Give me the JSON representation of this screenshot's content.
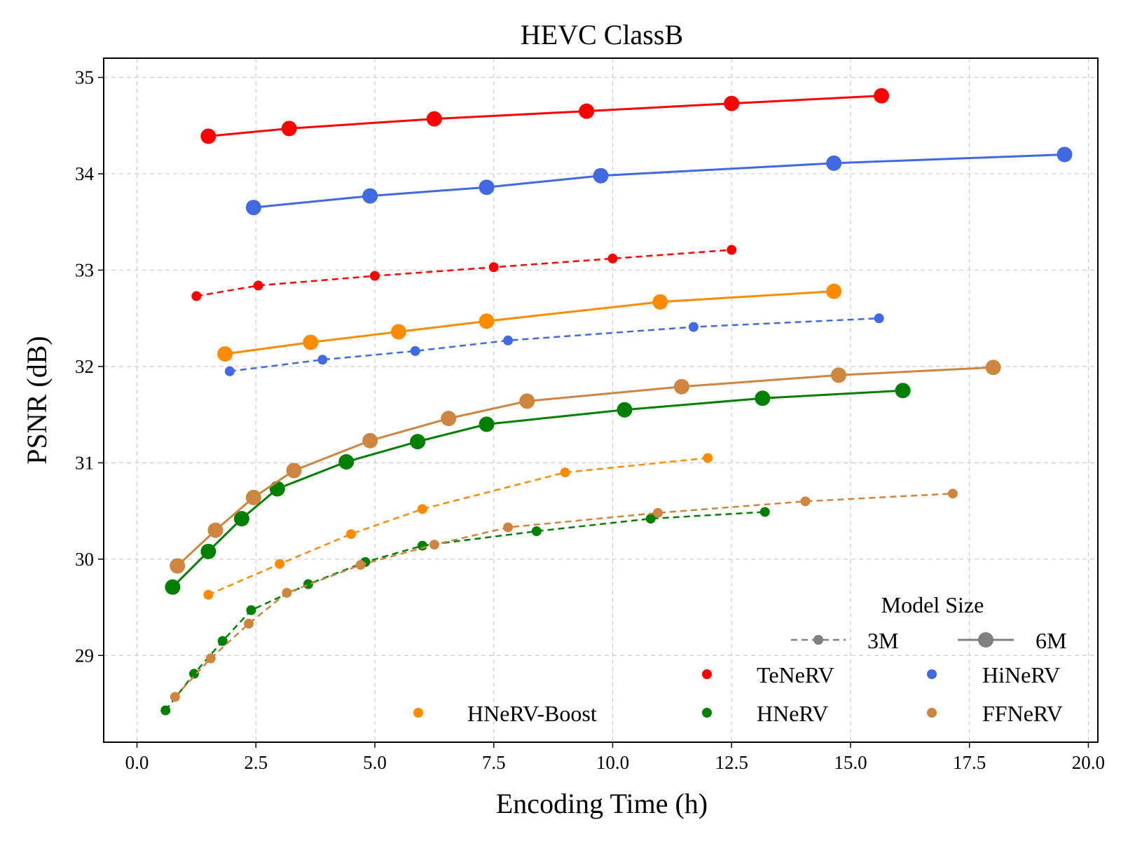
{
  "chart_data": {
    "type": "line",
    "title": "HEVC ClassB",
    "xlabel": "Encoding Time (h)",
    "ylabel": "PSNR (dB)",
    "xlim": [
      -0.7,
      20.2
    ],
    "ylim": [
      28.1,
      35.2
    ],
    "xticks": [
      0,
      2.5,
      5,
      7.5,
      10,
      12.5,
      15,
      17.5,
      20
    ],
    "xtick_labels": [
      "0.0",
      "2.5",
      "5.0",
      "7.5",
      "10.0",
      "12.5",
      "15.0",
      "17.5",
      "20.0"
    ],
    "yticks": [
      29,
      30,
      31,
      32,
      33,
      34,
      35
    ],
    "ytick_labels": [
      "29",
      "30",
      "31",
      "32",
      "33",
      "34",
      "35"
    ],
    "grid": true,
    "legend": {
      "placement": "bottom-right",
      "size_title": "Model Size",
      "size_entries": [
        {
          "label": "3M",
          "style": "dashed-small"
        },
        {
          "label": "6M",
          "style": "solid-large"
        }
      ],
      "method_entries": [
        {
          "label": "TeNeRV",
          "color": "#ff0000"
        },
        {
          "label": "HiNeRV",
          "color": "#4169e1"
        },
        {
          "label": "HNeRV-Boost",
          "color": "#ff8c00"
        },
        {
          "label": "HNeRV",
          "color": "#008000"
        },
        {
          "label": "FFNeRV",
          "color": "#cd853f"
        }
      ],
      "size_marker_color": "#808080"
    },
    "series": [
      {
        "name": "TeNeRV",
        "size": "6M",
        "color": "#ff0000",
        "x": [
          1.5,
          3.2,
          6.25,
          9.45,
          12.5,
          15.65
        ],
        "y": [
          34.39,
          34.47,
          34.57,
          34.65,
          34.73,
          34.81
        ]
      },
      {
        "name": "TeNeRV",
        "size": "3M",
        "color": "#ff0000",
        "x": [
          1.25,
          2.55,
          5.0,
          7.5,
          10.0,
          12.5
        ],
        "y": [
          32.73,
          32.84,
          32.94,
          33.03,
          33.12,
          33.21
        ]
      },
      {
        "name": "HiNeRV",
        "size": "6M",
        "color": "#4169e1",
        "x": [
          2.45,
          4.9,
          7.35,
          9.75,
          14.65,
          19.5
        ],
        "y": [
          33.65,
          33.77,
          33.86,
          33.98,
          34.11,
          34.2
        ]
      },
      {
        "name": "HiNeRV",
        "size": "3M",
        "color": "#4169e1",
        "x": [
          1.95,
          3.9,
          5.85,
          7.8,
          11.7,
          15.6
        ],
        "y": [
          31.95,
          32.07,
          32.16,
          32.27,
          32.41,
          32.5
        ]
      },
      {
        "name": "HNeRV-Boost",
        "size": "6M",
        "color": "#ff8c00",
        "x": [
          1.85,
          3.65,
          5.5,
          7.35,
          11.0,
          14.65
        ],
        "y": [
          32.13,
          32.25,
          32.36,
          32.47,
          32.67,
          32.78
        ]
      },
      {
        "name": "HNeRV-Boost",
        "size": "3M",
        "color": "#ff8c00",
        "x": [
          1.5,
          3.0,
          4.5,
          6.0,
          9.0,
          12.0
        ],
        "y": [
          29.63,
          29.95,
          30.26,
          30.52,
          30.9,
          31.05
        ]
      },
      {
        "name": "HNeRV",
        "size": "6M",
        "color": "#008000",
        "x": [
          0.75,
          1.5,
          2.2,
          2.95,
          4.4,
          5.9,
          7.35,
          10.25,
          13.15,
          16.1
        ],
        "y": [
          29.71,
          30.08,
          30.42,
          30.73,
          31.01,
          31.22,
          31.4,
          31.55,
          31.67,
          31.75
        ]
      },
      {
        "name": "HNeRV",
        "size": "3M",
        "color": "#008000",
        "x": [
          0.6,
          1.2,
          1.8,
          2.4,
          3.6,
          4.8,
          6.0,
          8.4,
          10.8,
          13.2
        ],
        "y": [
          28.43,
          28.81,
          29.15,
          29.47,
          29.74,
          29.97,
          30.14,
          30.29,
          30.42,
          30.49
        ]
      },
      {
        "name": "FFNeRV",
        "size": "6M",
        "color": "#cd853f",
        "x": [
          0.85,
          1.65,
          2.45,
          3.3,
          4.9,
          6.55,
          8.2,
          11.45,
          14.75,
          18.0
        ],
        "y": [
          29.93,
          30.3,
          30.64,
          30.92,
          31.23,
          31.46,
          31.64,
          31.79,
          31.91,
          31.99
        ]
      },
      {
        "name": "FFNeRV",
        "size": "3M",
        "color": "#cd853f",
        "x": [
          0.8,
          1.55,
          2.35,
          3.15,
          4.7,
          6.25,
          7.8,
          10.95,
          14.05,
          17.15
        ],
        "y": [
          28.57,
          28.97,
          29.33,
          29.65,
          29.94,
          30.15,
          30.33,
          30.48,
          30.6,
          30.68
        ]
      }
    ]
  }
}
